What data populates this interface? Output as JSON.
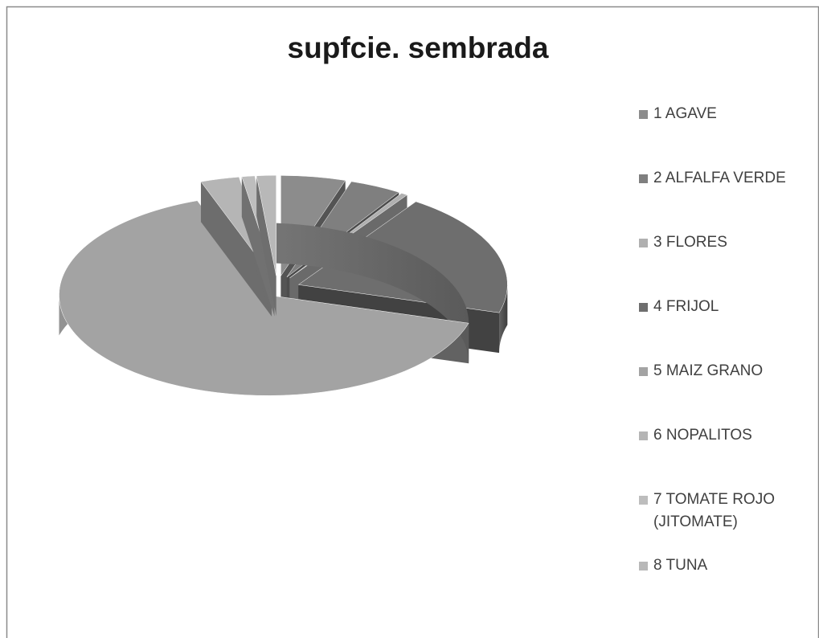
{
  "chart_data": {
    "type": "pie3d",
    "title": "supfcie. sembrada",
    "categories": [
      "1 AGAVE",
      "2 ALFALFA VERDE",
      "3 FLORES",
      "4 FRIJOL",
      "5 MAIZ GRANO",
      "6 NOPALITOS",
      "7 TOMATE ROJO (JITOMATE)",
      "8 TUNA"
    ],
    "values": [
      5,
      4,
      0.5,
      20,
      65,
      3,
      1,
      1.5
    ],
    "colors": [
      "#8c8c8c",
      "#7f7f7f",
      "#b0b0b0",
      "#6e6e6e",
      "#a3a3a3",
      "#b5b5b5",
      "#bdbdbd",
      "#b8b8b8"
    ],
    "legend": "right"
  }
}
